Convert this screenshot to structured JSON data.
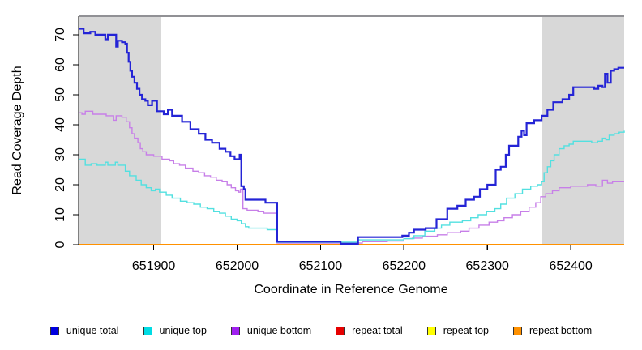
{
  "figure": {
    "x_axis_title": "Coordinate in Reference Genome",
    "y_axis_title": "Read Coverage Depth"
  },
  "chart_data": {
    "type": "line",
    "step": true,
    "title": "",
    "xlabel": "Coordinate in Reference Genome",
    "ylabel": "Read Coverage Depth",
    "xlim": [
      651810,
      652464
    ],
    "ylim": [
      0,
      76.2
    ],
    "x_ticks": [
      651900,
      652000,
      652100,
      652200,
      652300,
      652400
    ],
    "y_ticks": [
      0,
      10,
      20,
      30,
      40,
      50,
      60,
      70
    ],
    "grid": false,
    "legend_position": "bottom",
    "plot_border_top_color": "#919195",
    "axis_color": "#000000",
    "shaded_regions": [
      {
        "x0": 651810,
        "x1": 651909,
        "color": "#d8d8d8"
      },
      {
        "x0": 652366,
        "x1": 652464,
        "color": "#d8d8d8"
      }
    ],
    "series": [
      {
        "name": "unique total",
        "color": "#2424d6",
        "swatch": "#0000e0",
        "width": 2.2,
        "z": 6,
        "points": [
          [
            651810,
            72
          ],
          [
            651816,
            70.5
          ],
          [
            651824,
            71
          ],
          [
            651830,
            70
          ],
          [
            651842,
            68.5
          ],
          [
            651845,
            70
          ],
          [
            651855,
            66
          ],
          [
            651857,
            68
          ],
          [
            651862,
            67.5
          ],
          [
            651866,
            67
          ],
          [
            651868,
            64
          ],
          [
            651870,
            61
          ],
          [
            651872,
            58
          ],
          [
            651874,
            56
          ],
          [
            651877,
            54
          ],
          [
            651880,
            52
          ],
          [
            651883,
            50
          ],
          [
            651886,
            48.5
          ],
          [
            651890,
            48
          ],
          [
            651893,
            46.5
          ],
          [
            651898,
            48
          ],
          [
            651904,
            44.5
          ],
          [
            651912,
            43.5
          ],
          [
            651917,
            45
          ],
          [
            651922,
            43
          ],
          [
            651934,
            41
          ],
          [
            651944,
            38.5
          ],
          [
            651954,
            37
          ],
          [
            651962,
            35
          ],
          [
            651970,
            34
          ],
          [
            651979,
            32
          ],
          [
            651986,
            31
          ],
          [
            651992,
            29.5
          ],
          [
            651997,
            28.5
          ],
          [
            652003,
            30
          ],
          [
            652005,
            19.5
          ],
          [
            652008,
            18.5
          ],
          [
            652010,
            15
          ],
          [
            652034,
            14
          ],
          [
            652048,
            1
          ],
          [
            652124,
            0.3
          ],
          [
            652145,
            2.5
          ],
          [
            652198,
            3
          ],
          [
            652206,
            4
          ],
          [
            652212,
            5
          ],
          [
            652226,
            5.5
          ],
          [
            652239,
            8.5
          ],
          [
            652252,
            12
          ],
          [
            652264,
            13
          ],
          [
            652274,
            15
          ],
          [
            652284,
            16
          ],
          [
            652291,
            18.5
          ],
          [
            652300,
            20
          ],
          [
            652310,
            25
          ],
          [
            652316,
            26
          ],
          [
            652322,
            30
          ],
          [
            652326,
            33
          ],
          [
            652337,
            36
          ],
          [
            652341,
            38
          ],
          [
            652344,
            36.5
          ],
          [
            652347,
            40.5
          ],
          [
            652356,
            41.5
          ],
          [
            652365,
            43
          ],
          [
            652372,
            45
          ],
          [
            652379,
            47.5
          ],
          [
            652390,
            48.5
          ],
          [
            652398,
            50
          ],
          [
            652403,
            52.5
          ],
          [
            652428,
            52
          ],
          [
            652433,
            53
          ],
          [
            652438,
            52.5
          ],
          [
            652441,
            57
          ],
          [
            652444,
            54
          ],
          [
            652448,
            58
          ],
          [
            652452,
            58.5
          ],
          [
            652457,
            59
          ],
          [
            652464,
            59
          ]
        ]
      },
      {
        "name": "unique top",
        "color": "#52e0e0",
        "swatch": "#00dce4",
        "width": 1.4,
        "z": 5,
        "points": [
          [
            651810,
            28.5
          ],
          [
            651818,
            26.5
          ],
          [
            651825,
            27
          ],
          [
            651832,
            26.5
          ],
          [
            651842,
            27.5
          ],
          [
            651845,
            26.5
          ],
          [
            651854,
            27.5
          ],
          [
            651857,
            26.5
          ],
          [
            651866,
            24.5
          ],
          [
            651871,
            23
          ],
          [
            651879,
            21.5
          ],
          [
            651885,
            20
          ],
          [
            651891,
            19
          ],
          [
            651897,
            18
          ],
          [
            651902,
            18.5
          ],
          [
            651907,
            17.5
          ],
          [
            651915,
            16.5
          ],
          [
            651922,
            15.5
          ],
          [
            651932,
            14.5
          ],
          [
            651940,
            14
          ],
          [
            651948,
            13.5
          ],
          [
            651956,
            12.5
          ],
          [
            651964,
            12
          ],
          [
            651972,
            11
          ],
          [
            651979,
            10.5
          ],
          [
            651986,
            9.5
          ],
          [
            651993,
            8.5
          ],
          [
            652000,
            8
          ],
          [
            652005,
            7
          ],
          [
            652010,
            6
          ],
          [
            652014,
            5.5
          ],
          [
            652036,
            5
          ],
          [
            652048,
            0.8
          ],
          [
            652145,
            1.6
          ],
          [
            652200,
            2
          ],
          [
            652212,
            3
          ],
          [
            652225,
            4.5
          ],
          [
            652237,
            5.5
          ],
          [
            652245,
            6.5
          ],
          [
            652255,
            7.5
          ],
          [
            652270,
            8
          ],
          [
            652280,
            9
          ],
          [
            652289,
            10
          ],
          [
            652299,
            11
          ],
          [
            652309,
            12
          ],
          [
            652316,
            13.5
          ],
          [
            652323,
            15.5
          ],
          [
            652333,
            17
          ],
          [
            652342,
            18.5
          ],
          [
            652352,
            19.5
          ],
          [
            652360,
            20
          ],
          [
            652365,
            21
          ],
          [
            652368,
            24
          ],
          [
            652372,
            26
          ],
          [
            652376,
            28
          ],
          [
            652380,
            30
          ],
          [
            652386,
            32
          ],
          [
            652392,
            33
          ],
          [
            652398,
            33.5
          ],
          [
            652403,
            34.5
          ],
          [
            652425,
            34
          ],
          [
            652432,
            34.5
          ],
          [
            652438,
            35.5
          ],
          [
            652442,
            35
          ],
          [
            652446,
            36.5
          ],
          [
            652452,
            37
          ],
          [
            652458,
            37.5
          ],
          [
            652464,
            38
          ]
        ]
      },
      {
        "name": "unique bottom",
        "color": "#c77fe8",
        "swatch": "#a020f0",
        "width": 1.4,
        "z": 4,
        "points": [
          [
            651810,
            44
          ],
          [
            651814,
            43.5
          ],
          [
            651818,
            44.5
          ],
          [
            651827,
            43.5
          ],
          [
            651843,
            43
          ],
          [
            651852,
            41.5
          ],
          [
            651855,
            43
          ],
          [
            651862,
            42.5
          ],
          [
            651867,
            41
          ],
          [
            651871,
            39
          ],
          [
            651874,
            37
          ],
          [
            651877,
            35.5
          ],
          [
            651881,
            34
          ],
          [
            651884,
            32
          ],
          [
            651887,
            31
          ],
          [
            651891,
            30
          ],
          [
            651900,
            29.5
          ],
          [
            651910,
            28.5
          ],
          [
            651919,
            28
          ],
          [
            651924,
            27
          ],
          [
            651931,
            26.5
          ],
          [
            651938,
            25.5
          ],
          [
            651947,
            24.5
          ],
          [
            651954,
            24
          ],
          [
            651961,
            23
          ],
          [
            651968,
            22.5
          ],
          [
            651975,
            21.5
          ],
          [
            651982,
            21
          ],
          [
            651988,
            20
          ],
          [
            651993,
            19
          ],
          [
            651998,
            18
          ],
          [
            652002,
            17.5
          ],
          [
            652004,
            18.5
          ],
          [
            652007,
            12
          ],
          [
            652012,
            11.5
          ],
          [
            652025,
            11
          ],
          [
            652032,
            10.5
          ],
          [
            652048,
            0.5
          ],
          [
            652150,
            1
          ],
          [
            652180,
            1.2
          ],
          [
            652200,
            2
          ],
          [
            652210,
            2.2
          ],
          [
            652222,
            2.8
          ],
          [
            652240,
            3.3
          ],
          [
            652252,
            4
          ],
          [
            652268,
            4.5
          ],
          [
            652278,
            5.5
          ],
          [
            652290,
            6.5
          ],
          [
            652302,
            7.5
          ],
          [
            652312,
            8
          ],
          [
            652320,
            9
          ],
          [
            652330,
            10
          ],
          [
            652340,
            11
          ],
          [
            652350,
            12.5
          ],
          [
            652358,
            14
          ],
          [
            652364,
            16
          ],
          [
            652370,
            17
          ],
          [
            652378,
            18
          ],
          [
            652386,
            19
          ],
          [
            652400,
            19.5
          ],
          [
            652420,
            20
          ],
          [
            652430,
            19.5
          ],
          [
            652438,
            21.5
          ],
          [
            652444,
            20.5
          ],
          [
            652450,
            21
          ],
          [
            652464,
            21
          ]
        ]
      },
      {
        "name": "repeat total",
        "color": "#e60000",
        "swatch": "#e60000",
        "width": 1.6,
        "z": 1,
        "points": [
          [
            651810,
            0
          ],
          [
            652464,
            0
          ]
        ]
      },
      {
        "name": "repeat top",
        "color": "#ffff00",
        "swatch": "#ffff00",
        "width": 1.6,
        "z": 2,
        "points": [
          [
            651810,
            0
          ],
          [
            652464,
            0
          ]
        ]
      },
      {
        "name": "repeat bottom",
        "color": "#ff9100",
        "swatch": "#ff9100",
        "width": 2,
        "z": 3,
        "points": [
          [
            651810,
            0
          ],
          [
            652464,
            0
          ]
        ]
      }
    ]
  }
}
